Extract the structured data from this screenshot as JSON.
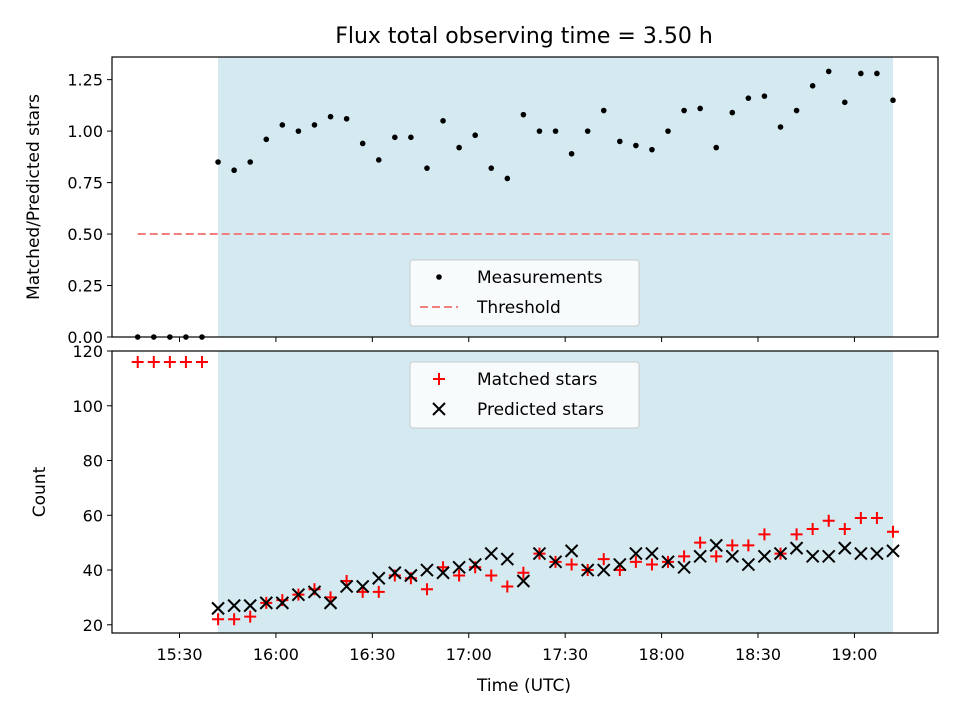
{
  "colors": {
    "shade": "#d4e9f0",
    "threshold": "#f08080",
    "measurement": "#000000",
    "matched": "#ff0000",
    "predicted": "#000000"
  },
  "chart_data": [
    {
      "type": "scatter",
      "title": "Flux total observing time = 3.50 h",
      "xlabel": "",
      "ylabel": "Matched/Predicted stars",
      "ylim": [
        0,
        1.36
      ],
      "yticks": [
        0.0,
        0.25,
        0.5,
        0.75,
        1.0,
        1.25
      ],
      "ytick_labels": [
        "0.00",
        "0.25",
        "0.50",
        "0.75",
        "1.00",
        "1.25"
      ],
      "shaded_span": [
        "15:42",
        "19:12"
      ],
      "legend": [
        "Measurements",
        "Threshold"
      ],
      "legend_position": "lower center",
      "threshold": {
        "value": 0.5,
        "x_start": "15:17",
        "x_end": "19:12"
      },
      "series": [
        {
          "name": "Measurements",
          "x": [
            "15:17",
            "15:22",
            "15:27",
            "15:32",
            "15:37",
            "15:42",
            "15:47",
            "15:52",
            "15:57",
            "16:02",
            "16:07",
            "16:12",
            "16:17",
            "16:22",
            "16:27",
            "16:32",
            "16:37",
            "16:42",
            "16:47",
            "16:52",
            "16:57",
            "17:02",
            "17:07",
            "17:12",
            "17:17",
            "17:22",
            "17:27",
            "17:32",
            "17:37",
            "17:42",
            "17:47",
            "17:52",
            "17:57",
            "18:02",
            "18:07",
            "18:12",
            "18:17",
            "18:22",
            "18:27",
            "18:32",
            "18:37",
            "18:42",
            "18:47",
            "18:52",
            "18:57",
            "19:02",
            "19:07",
            "19:12"
          ],
          "values": [
            0,
            0,
            0,
            0,
            0,
            0.85,
            0.81,
            0.85,
            0.96,
            1.03,
            1.0,
            1.03,
            1.07,
            1.06,
            0.94,
            0.86,
            0.97,
            0.97,
            0.82,
            1.05,
            0.92,
            0.98,
            0.82,
            0.77,
            1.08,
            1.0,
            1.0,
            0.89,
            1.0,
            1.1,
            0.95,
            0.93,
            0.91,
            1.0,
            1.1,
            1.11,
            0.92,
            1.09,
            1.16,
            1.17,
            1.02,
            1.1,
            1.22,
            1.29,
            1.14,
            1.28,
            1.28,
            1.15
          ]
        }
      ]
    },
    {
      "type": "scatter",
      "title": "",
      "xlabel": "Time (UTC)",
      "ylabel": "Count",
      "ylim": [
        17,
        120
      ],
      "yticks": [
        20,
        40,
        60,
        80,
        100,
        120
      ],
      "ytick_labels": [
        "20",
        "40",
        "60",
        "80",
        "100",
        "120"
      ],
      "xlim": [
        "15:09",
        "19:26"
      ],
      "xticks": [
        "15:30",
        "16:00",
        "16:30",
        "17:00",
        "17:30",
        "18:00",
        "18:30",
        "19:00"
      ],
      "shaded_span": [
        "15:42",
        "19:12"
      ],
      "legend": [
        "Matched stars",
        "Predicted stars"
      ],
      "legend_position": "upper center",
      "series": [
        {
          "name": "Matched stars",
          "x": [
            "15:17",
            "15:22",
            "15:27",
            "15:32",
            "15:37",
            "15:42",
            "15:47",
            "15:52",
            "15:57",
            "16:02",
            "16:07",
            "16:12",
            "16:17",
            "16:22",
            "16:27",
            "16:32",
            "16:37",
            "16:42",
            "16:47",
            "16:52",
            "16:57",
            "17:02",
            "17:07",
            "17:12",
            "17:17",
            "17:22",
            "17:27",
            "17:32",
            "17:37",
            "17:42",
            "17:47",
            "17:52",
            "17:57",
            "18:02",
            "18:07",
            "18:12",
            "18:17",
            "18:22",
            "18:27",
            "18:32",
            "18:37",
            "18:42",
            "18:47",
            "18:52",
            "18:57",
            "19:02",
            "19:07",
            "19:12"
          ],
          "values": [
            116,
            116,
            116,
            116,
            116,
            22,
            22,
            23,
            28,
            29,
            31,
            33,
            30,
            36,
            32,
            32,
            38,
            37,
            33,
            41,
            38,
            41,
            38,
            34,
            39,
            46,
            43,
            42,
            40,
            44,
            40,
            43,
            42,
            43,
            45,
            50,
            45,
            49,
            49,
            53,
            46,
            53,
            55,
            58,
            55,
            59,
            59,
            54
          ]
        },
        {
          "name": "Predicted stars",
          "x": [
            "15:42",
            "15:47",
            "15:52",
            "15:57",
            "16:02",
            "16:07",
            "16:12",
            "16:17",
            "16:22",
            "16:27",
            "16:32",
            "16:37",
            "16:42",
            "16:47",
            "16:52",
            "16:57",
            "17:02",
            "17:07",
            "17:12",
            "17:17",
            "17:22",
            "17:27",
            "17:32",
            "17:37",
            "17:42",
            "17:47",
            "17:52",
            "17:57",
            "18:02",
            "18:07",
            "18:12",
            "18:17",
            "18:22",
            "18:27",
            "18:32",
            "18:37",
            "18:42",
            "18:47",
            "18:52",
            "18:57",
            "19:02",
            "19:07",
            "19:12"
          ],
          "values": [
            26,
            27,
            27,
            28,
            28,
            31,
            32,
            28,
            34,
            34,
            37,
            39,
            38,
            40,
            39,
            41,
            42,
            46,
            44,
            36,
            46,
            43,
            47,
            40,
            40,
            42,
            46,
            46,
            43,
            41,
            45,
            49,
            45,
            42,
            45,
            46,
            48,
            45,
            45,
            48,
            46,
            46,
            47
          ]
        }
      ]
    }
  ]
}
